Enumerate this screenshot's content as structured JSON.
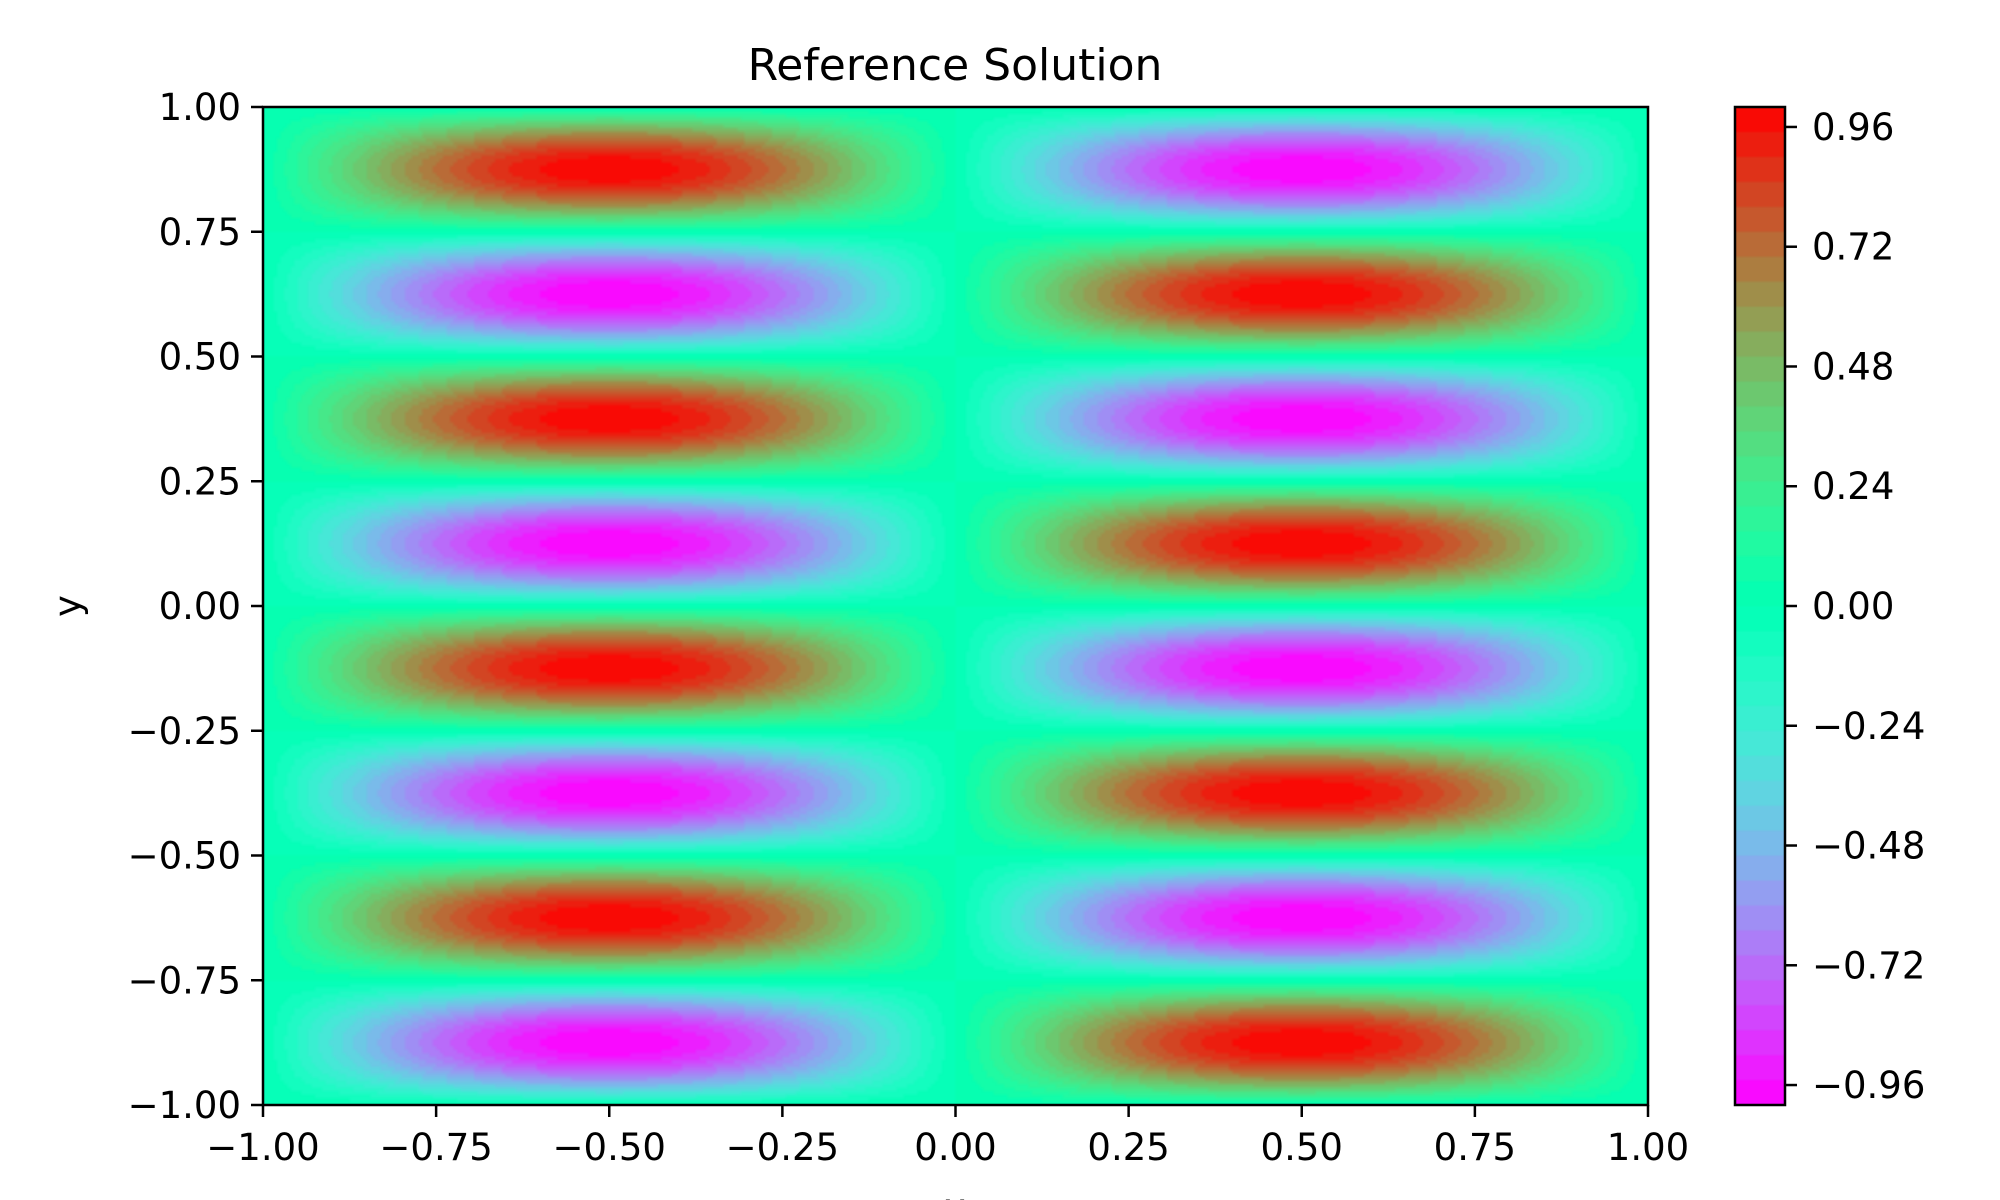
{
  "chart_data": {
    "type": "heatmap",
    "title": "Reference Solution",
    "xlabel": "x",
    "ylabel": "y",
    "xlim": [
      -1.0,
      1.0
    ],
    "ylim": [
      -1.0,
      1.0
    ],
    "x_ticks": [
      "−1.00",
      "−0.75",
      "−0.50",
      "−0.25",
      "0.00",
      "0.25",
      "0.50",
      "0.75",
      "1.00"
    ],
    "y_ticks": [
      "−1.00",
      "−0.75",
      "−0.50",
      "−0.25",
      "0.00",
      "0.25",
      "0.50",
      "0.75",
      "1.00"
    ],
    "colorbar": {
      "range": [
        -1.0,
        1.0
      ],
      "ticks": [
        "−0.96",
        "−0.72",
        "−0.48",
        "−0.24",
        "0.00",
        "0.24",
        "0.48",
        "0.72",
        "0.96"
      ],
      "colormap": "rainbow"
    },
    "field": {
      "function": "u(x, y) = sin(pi * x) * sin(4 * pi * y)",
      "x_frequency": 1,
      "y_frequency": 4,
      "amplitude": 1.0
    },
    "grid": false
  }
}
